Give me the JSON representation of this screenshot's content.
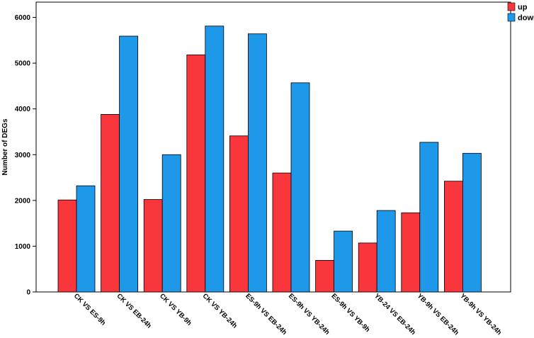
{
  "chart_data": {
    "type": "bar",
    "title": "",
    "xlabel": "",
    "ylabel": "Number of DEGs",
    "ylim": [
      0,
      6000
    ],
    "yticks": [
      0,
      1000,
      2000,
      3000,
      4000,
      5000,
      6000
    ],
    "grid": false,
    "legend_position": "top-right",
    "categories": [
      "CK VS ES-9h",
      "CK VS EB-24h",
      "CK VS YB-9h",
      "CK VS YB-24h",
      "ES-9h VS EB-24h",
      "ES-9h VS YB-24h",
      "ES-9h VS YB-9h",
      "YB-24 VS EB-24h",
      "YB-9h VS EB-24h",
      "YB-9h VS YB-24h"
    ],
    "series": [
      {
        "name": "up",
        "color": "#f8363c",
        "values": [
          2010,
          3880,
          2020,
          5180,
          3410,
          2600,
          690,
          1070,
          1730,
          2420
        ]
      },
      {
        "name": "down",
        "color": "#1e98e8",
        "values": [
          2320,
          5590,
          3000,
          5810,
          5640,
          4570,
          1330,
          1780,
          3270,
          3030
        ]
      }
    ]
  }
}
